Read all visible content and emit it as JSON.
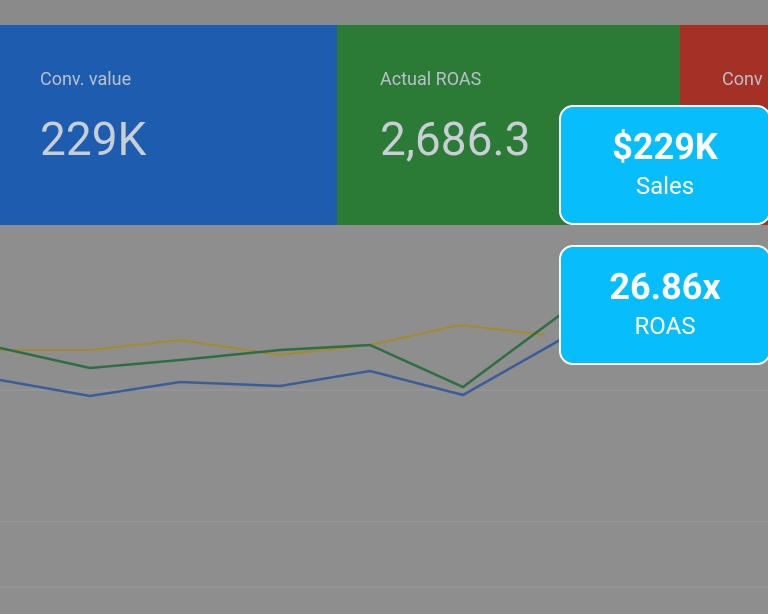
{
  "tiles": [
    {
      "label": "Conv. value",
      "value": "229K"
    },
    {
      "label": "Actual ROAS",
      "value": "2,686.3"
    },
    {
      "label": "Conv"
    }
  ],
  "callouts": [
    {
      "value": "$229K",
      "label": "Sales"
    },
    {
      "value": "26.86x",
      "label": "ROAS"
    }
  ]
}
